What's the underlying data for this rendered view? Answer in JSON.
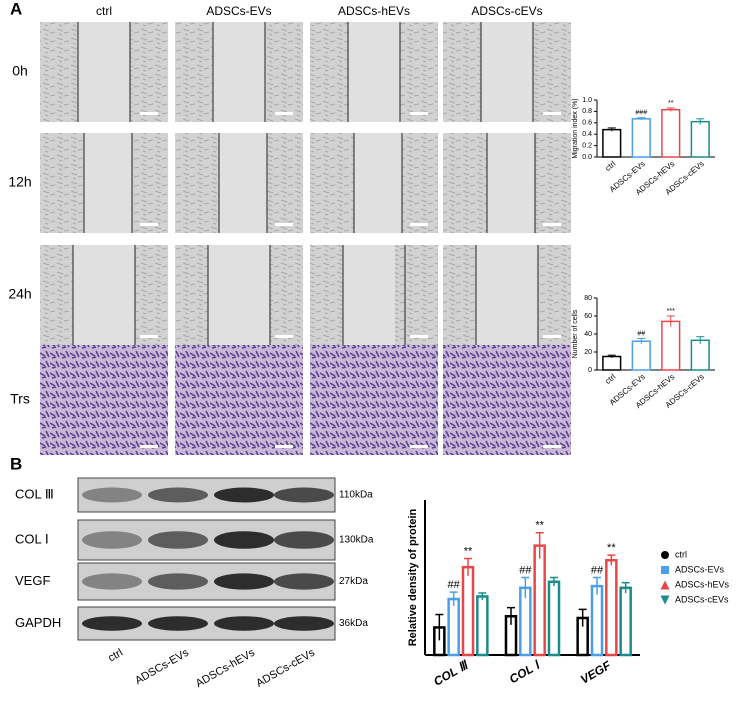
{
  "figure": {
    "panel_a": "A",
    "panel_b": "B",
    "columns": [
      "ctrl",
      "ADSCs-EVs",
      "ADSCs-hEVs",
      "ADSCs-cEVs"
    ],
    "rows": [
      "0h",
      "12h",
      "24h",
      "Trs"
    ],
    "blot_labels": [
      "COL Ⅲ",
      "COL Ⅰ",
      "VEGF",
      "GAPDH"
    ],
    "blot_sizes": [
      "110kDa",
      "130kDa",
      "27kDa",
      "36kDa"
    ],
    "blot_lanes": [
      "ctrl",
      "ADSCs-EVs",
      "ADSCs-hEVs",
      "ADSCs-cEVs"
    ]
  },
  "chart_data": [
    {
      "type": "bar",
      "y_label": "Migration index (%)",
      "categories": [
        "ctrl",
        "ADSCs-EVs",
        "ADSCs-hEVs",
        "ADSCs-cEVs"
      ],
      "values": [
        0.48,
        0.67,
        0.83,
        0.62
      ],
      "errors": [
        0.03,
        0.02,
        0.03,
        0.05
      ],
      "annotations": [
        null,
        "###",
        "**",
        null
      ],
      "colors": [
        "#000000",
        "#4a9fe8",
        "#e8474a",
        "#1a8c8c"
      ],
      "ylim": [
        0,
        1.0
      ],
      "yticks": [
        {
          "value": 0,
          "label": "0.0"
        },
        0.2,
        0.4,
        0.6,
        0.8,
        {
          "value": 1.0,
          "label": "1.0"
        }
      ]
    },
    {
      "type": "bar",
      "y_label": "Number of cells",
      "categories": [
        "ctrl",
        "ADSCs-EVs",
        "ADSCs-hEVs",
        "ADSCs-cEVs"
      ],
      "values": [
        15,
        32,
        54,
        33
      ],
      "errors": [
        1.5,
        3,
        6,
        4
      ],
      "annotations": [
        null,
        "##",
        "***",
        null
      ],
      "colors": [
        "#000000",
        "#4a9fe8",
        "#e8474a",
        "#1a8c8c"
      ],
      "ylim": [
        0,
        80
      ],
      "yticks": [
        0,
        20,
        40,
        60,
        80
      ]
    },
    {
      "type": "grouped-bar",
      "y_label": "Relative density of protein",
      "categories": [
        "COL Ⅲ",
        "COL Ⅰ",
        "VEGF"
      ],
      "ylim": [
        0,
        1.8
      ],
      "series": [
        {
          "name": "ctrl",
          "color": "#000000",
          "values": [
            0.32,
            0.45,
            0.43
          ],
          "errors": [
            0.15,
            0.1,
            0.1
          ],
          "annotations": [
            null,
            null,
            null
          ]
        },
        {
          "name": "ADSCs-EVs",
          "color": "#4a9fe8",
          "values": [
            0.65,
            0.78,
            0.8
          ],
          "errors": [
            0.08,
            0.12,
            0.1
          ],
          "annotations": [
            "##",
            "##",
            "##"
          ]
        },
        {
          "name": "ADSCs-hEVs",
          "color": "#e8474a",
          "values": [
            1.02,
            1.27,
            1.1
          ],
          "errors": [
            0.1,
            0.15,
            0.06
          ],
          "annotations": [
            "**",
            "**",
            "**"
          ]
        },
        {
          "name": "ADSCs-cEVs",
          "color": "#1a8c8c",
          "values": [
            0.68,
            0.85,
            0.78
          ],
          "errors": [
            0.04,
            0.05,
            0.06
          ],
          "annotations": [
            null,
            null,
            null
          ]
        }
      ]
    }
  ]
}
